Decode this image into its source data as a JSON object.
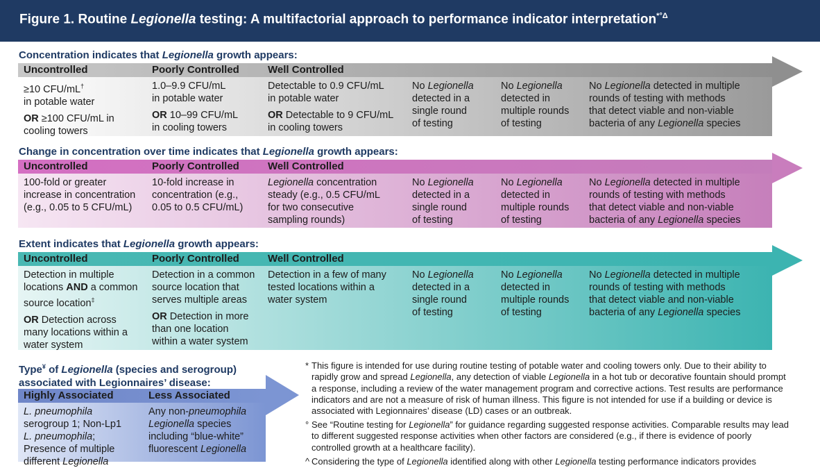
{
  "header": {
    "title_a": "Figure 1. Routine ",
    "title_b": "Legionella",
    "title_c": " testing: A multifactorial approach to performance indicator interpretation",
    "title_marks": "*°Δ"
  },
  "common": {
    "col_uncontrolled": "Uncontrolled",
    "col_poor": "Poorly Controlled",
    "col_well": "Well Controlled",
    "no": "No",
    "legionella": "Legionella",
    "single_a": "detected in a",
    "single_b": "single round",
    "single_c": "of testing",
    "multi_a": "detected in",
    "multi_b": "multiple rounds",
    "multi_c": "of testing",
    "full_a": "detected in multiple",
    "full_b": "rounds of testing with methods",
    "full_c": "that detect viable and non-viable",
    "full_d": "bacteria of any",
    "full_e": "species"
  },
  "concentration": {
    "title_a": "Concentration indicates that ",
    "title_b": "Legionella",
    "title_c": " growth appears:",
    "unc_1": "≥10 CFU/mL",
    "unc_1_mark": "†",
    "unc_2": "in potable water",
    "unc_3_or": "OR",
    "unc_3": " ≥100 CFU/mL in",
    "unc_4": "cooling towers",
    "poor_1": "1.0–9.9 CFU/mL",
    "poor_2": "in potable water",
    "poor_3_or": "OR",
    "poor_3": " 10–99 CFU/mL",
    "poor_4": "in cooling towers",
    "well_1": "Detectable to 0.9 CFU/mL",
    "well_2": "in potable water",
    "well_3_or": "OR",
    "well_3": " Detectable to 9 CFU/mL",
    "well_4": "in cooling towers"
  },
  "change": {
    "title_a": "Change in concentration over time indicates that ",
    "title_b": "Legionella",
    "title_c": " growth appears:",
    "unc_1": "100-fold or greater",
    "unc_2": "increase in concentration",
    "unc_3": "(e.g., 0.05 to 5 CFU/mL)",
    "poor_1": "10-fold increase in",
    "poor_2": "concentration (e.g.,",
    "poor_3": "0.05 to 0.5 CFU/mL)",
    "well_1a": "Legionella",
    "well_1b": " concentration",
    "well_2": "steady (e.g., 0.5 CFU/mL",
    "well_3": "for two consecutive",
    "well_4": "sampling rounds)"
  },
  "extent": {
    "title_a": "Extent indicates that ",
    "title_b": "Legionella",
    "title_c": " growth appears:",
    "unc_1": "Detection in multiple",
    "unc_2a": "locations ",
    "unc_2b": "AND",
    "unc_2c": " a common",
    "unc_3": "source location",
    "unc_3_mark": "‡",
    "unc_4_or": "OR",
    "unc_4": " Detection across",
    "unc_5": "many locations within a",
    "unc_6": "water system",
    "poor_1": "Detection in a common",
    "poor_2": "source location that",
    "poor_3": "serves multiple areas",
    "poor_4_or": "OR",
    "poor_4": " Detection in more",
    "poor_5": "than one location",
    "poor_6": "within a water system",
    "well_1": "Detection in a few of many",
    "well_2": "tested locations within a",
    "well_3": "water system"
  },
  "type": {
    "title_a": "Type",
    "title_mark": "¥",
    "title_b": " of ",
    "title_c": "Legionella",
    "title_d": " (species and serogroup)",
    "title_e": "associated with Legionnaires’ disease:",
    "col_high": "Highly Associated",
    "col_less": "Less Associated",
    "high_1": "L. pneumophila",
    "high_2": "serogroup 1; Non-Lp1",
    "high_3a": "L. pneumophila",
    "high_3b": ";",
    "high_4": "Presence of multiple",
    "high_5a": "different ",
    "high_5b": "Legionella",
    "less_1": "Any non-",
    "less_1b": "pneumophila",
    "less_2a": "Legionella",
    "less_2b": " species",
    "less_3": "including “blue-white”",
    "less_4a": "fluorescent ",
    "less_4b": "Legionella"
  },
  "footnotes": {
    "n1_mark": "*",
    "n1_a": "This figure is intended for use during routine testing of potable water and cooling towers only. Due to their ability to rapidly grow and spread ",
    "n1_b": "Legionella",
    "n1_c": ", any detection of viable ",
    "n1_d": "Legionella",
    "n1_e": " in a hot tub or decorative fountain should prompt a response, including a review of the water management program and corrective actions. Test results are performance indicators and are not a measure of risk of human illness. This figure is not intended for use if a building or device is associated with Legionnaires’ disease (LD) cases or an outbreak.",
    "n2_mark": "°",
    "n2_a": "See “Routine testing for ",
    "n2_b": "Legionella",
    "n2_c": "” for guidance regarding suggested response activities. Comparable results may lead to different suggested response activities when other factors are considered (e.g., if there is evidence of poorly controlled growth at a healthcare facility).",
    "n3_mark": "^",
    "n3_a": "Considering the type of ",
    "n3_b": "Legionella",
    "n3_c": " identified along with other ",
    "n3_d": "Legionella",
    "n3_e": " testing performance indicators provides"
  },
  "colors": {
    "header_bg": "#1f3a63",
    "gray": "#8c8c8c",
    "pink": "#c67fbb",
    "teal": "#3cb4b1",
    "blue": "#7c95d3"
  }
}
